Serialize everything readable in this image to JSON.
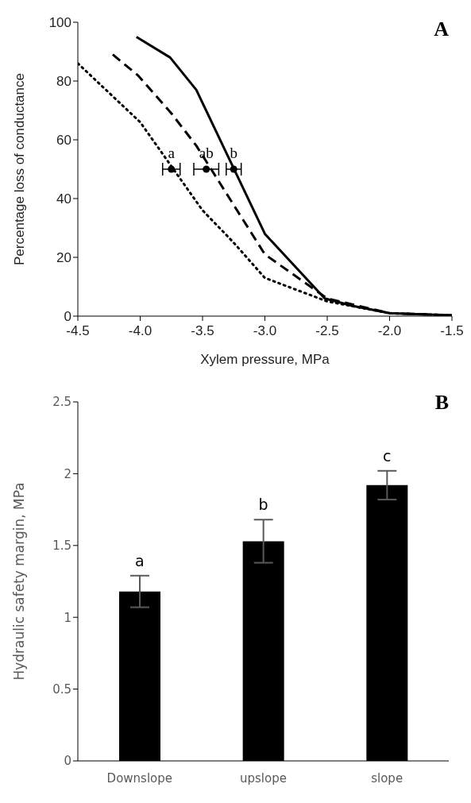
{
  "chart_data": [
    {
      "type": "line",
      "xlabel": "Xylem pressure, MPa",
      "ylabel": "Percentage loss of conductance",
      "xlim": [
        -4.5,
        -1.5
      ],
      "xticks": [
        {
          "value": -4.5,
          "label": "-4.5"
        },
        {
          "value": -4,
          "label": "-4.0"
        },
        {
          "value": -3.5,
          "label": "-3.5"
        },
        {
          "value": -3,
          "label": "-3.0"
        },
        {
          "value": -2.5,
          "label": "-2.5"
        },
        {
          "value": -2,
          "label": "-2.0"
        },
        {
          "value": -1.5,
          "label": "-1.5"
        }
      ],
      "ylim": [
        0,
        100
      ],
      "yticks": [
        0,
        20,
        40,
        60,
        80,
        100
      ],
      "grid": false,
      "legend": false,
      "marker": "none",
      "series": [
        {
          "type": "line",
          "color": "#000000",
          "line_style": "solid",
          "x": [
            -4.03,
            -3.76,
            -3.55,
            -3.0,
            -2.52,
            -2.3,
            -2.0,
            -1.5
          ],
          "values": [
            95,
            88,
            77,
            28,
            6,
            3.5,
            1,
            0.3
          ]
        },
        {
          "type": "line",
          "color": "#000000",
          "line_style": "dashed",
          "x": [
            -4.22,
            -4.02,
            -3.75,
            -3.55,
            -3.0,
            -2.5,
            -2.3,
            -2.0,
            -1.5
          ],
          "values": [
            89,
            82,
            69,
            58,
            21,
            6,
            4,
            1,
            0.3
          ]
        },
        {
          "type": "line",
          "color": "#000000",
          "line_style": "dotted",
          "x": [
            -4.5,
            -4.0,
            -3.75,
            -3.5,
            -3.25,
            -3.0,
            -2.5,
            -2.0,
            -1.5
          ],
          "values": [
            86,
            66,
            51,
            36,
            25,
            13,
            5,
            1,
            0.3
          ]
        },
        {
          "type": "scatter",
          "color": "#000000",
          "marker": "circle",
          "x": [
            -3.75,
            -3.47,
            -3.25
          ],
          "values": [
            50,
            50,
            50
          ],
          "xerrors": [
            0.07,
            0.1,
            0.06
          ]
        }
      ],
      "annotations": [
        {
          "text": "a",
          "x": -3.75,
          "y": 50
        },
        {
          "text": "ab",
          "x": -3.47,
          "y": 50
        },
        {
          "text": "b",
          "x": -3.25,
          "y": 50
        },
        "A"
      ]
    },
    {
      "type": "bar",
      "ylabel": "Hydraulic safety margin, MPa",
      "categories": [
        "Downslope",
        "upslope",
        "slope"
      ],
      "values": [
        1.18,
        1.53,
        1.92
      ],
      "errors": [
        0.11,
        0.15,
        0.1
      ],
      "color": "#000000",
      "ylim": [
        0,
        2.5
      ],
      "yticks": [
        0,
        0.5,
        1,
        1.5,
        2,
        2.5
      ],
      "grid": false,
      "legend": false,
      "annotations": [
        {
          "text": "a",
          "x": "Downslope",
          "y": 1.29
        },
        {
          "text": "b",
          "x": "upslope",
          "y": 1.68
        },
        {
          "text": "c",
          "x": "slope",
          "y": 2.02
        },
        "B"
      ]
    }
  ]
}
